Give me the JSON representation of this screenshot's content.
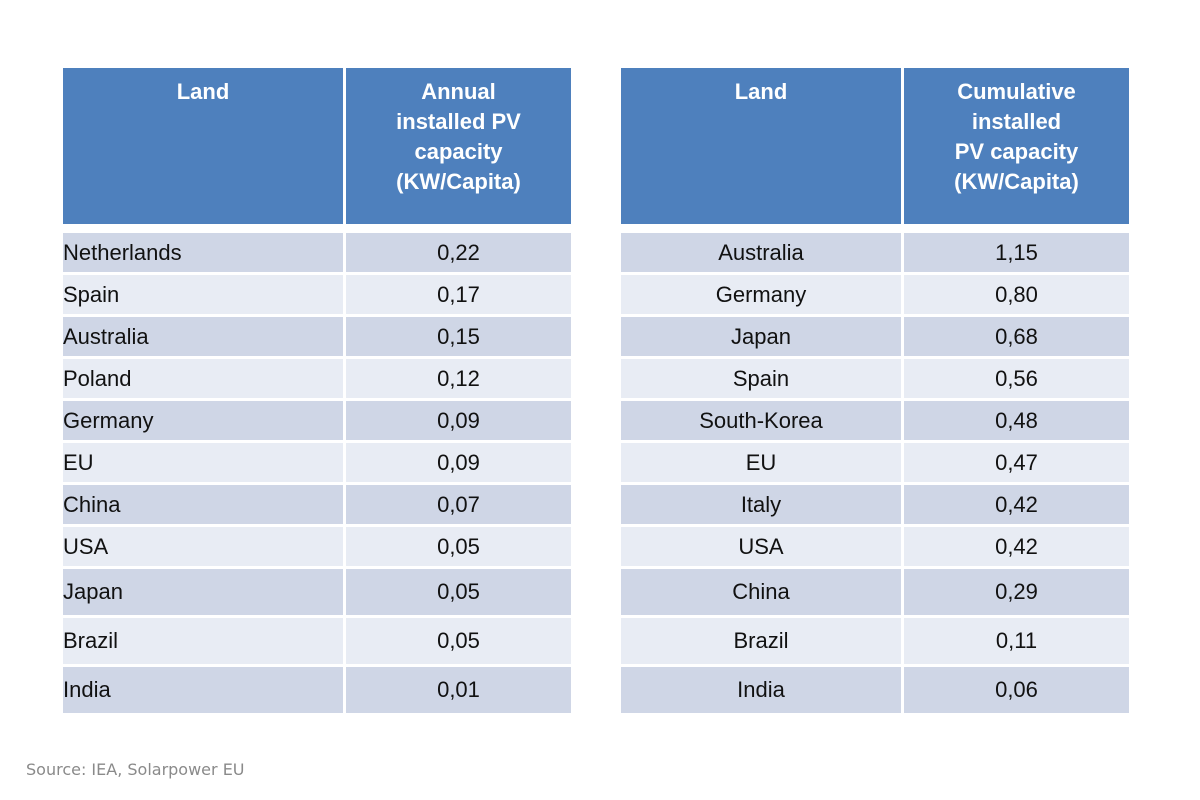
{
  "chart_data": [
    {
      "type": "table",
      "columns": [
        "Land",
        "Annual\ninstalled PV\ncapacity\n(KW/Capita)"
      ],
      "rows": [
        {
          "land": "Netherlands",
          "value": "0,22"
        },
        {
          "land": "Spain",
          "value": "0,17"
        },
        {
          "land": "Australia",
          "value": "0,15"
        },
        {
          "land": "Poland",
          "value": "0,12"
        },
        {
          "land": "Germany",
          "value": "0,09"
        },
        {
          "land": "EU",
          "value": "0,09"
        },
        {
          "land": "China",
          "value": "0,07"
        },
        {
          "land": "USA",
          "value": "0,05"
        },
        {
          "land": "Japan",
          "value": "0,05"
        },
        {
          "land": "Brazil",
          "value": "0,05"
        },
        {
          "land": "India",
          "value": "0,01"
        }
      ]
    },
    {
      "type": "table",
      "columns": [
        "Land",
        "Cumulative\ninstalled\nPV capacity\n(KW/Capita)"
      ],
      "rows": [
        {
          "land": "Australia",
          "value": "1,15"
        },
        {
          "land": "Germany",
          "value": "0,80"
        },
        {
          "land": "Japan",
          "value": "0,68"
        },
        {
          "land": "Spain",
          "value": "0,56"
        },
        {
          "land": "South-Korea",
          "value": "0,48"
        },
        {
          "land": "EU",
          "value": "0,47"
        },
        {
          "land": "Italy",
          "value": "0,42"
        },
        {
          "land": "USA",
          "value": "0,42"
        },
        {
          "land": "China",
          "value": "0,29"
        },
        {
          "land": "Brazil",
          "value": "0,11"
        },
        {
          "land": "India",
          "value": "0,06"
        }
      ]
    }
  ],
  "source": "Source: IEA, Solarpower EU",
  "colors": {
    "header": "#4e80bd",
    "row_odd": "#cfd6e6",
    "row_even": "#e8ecf4"
  }
}
